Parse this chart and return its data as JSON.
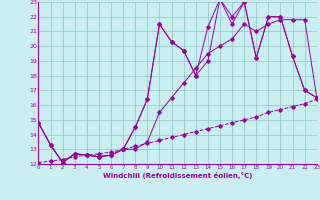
{
  "xlabel": "Windchill (Refroidissement éolien,°C)",
  "bg_color": "#c8eef0",
  "grid_color": "#99cccc",
  "line_color": "#990099",
  "xmin": 0,
  "xmax": 23,
  "ymin": 12,
  "ymax": 23,
  "series": [
    {
      "x": [
        0,
        1,
        2,
        3,
        4,
        5,
        6,
        7,
        8,
        9,
        10,
        11,
        12,
        13,
        14,
        15,
        16,
        17,
        18,
        19,
        20,
        21,
        22,
        23
      ],
      "y": [
        14.8,
        13.3,
        12.1,
        12.7,
        12.6,
        12.5,
        12.6,
        13.0,
        14.5,
        16.4,
        21.5,
        20.3,
        19.7,
        18.0,
        19.0,
        23.2,
        22.0,
        23.0,
        19.2,
        22.0,
        22.0,
        19.3,
        17.0,
        16.5
      ],
      "dashed": false
    },
    {
      "x": [
        0,
        1,
        2,
        3,
        4,
        5,
        6,
        7,
        8,
        9,
        10,
        11,
        12,
        13,
        14,
        15,
        16,
        17,
        18,
        19,
        20,
        21,
        22,
        23
      ],
      "y": [
        14.8,
        13.3,
        12.1,
        12.7,
        12.6,
        12.5,
        12.6,
        13.0,
        14.5,
        16.4,
        21.5,
        20.3,
        19.7,
        18.0,
        21.3,
        23.2,
        21.5,
        23.0,
        19.2,
        22.0,
        22.0,
        19.3,
        17.0,
        16.5
      ],
      "dashed": false
    },
    {
      "x": [
        0,
        1,
        2,
        3,
        4,
        5,
        6,
        7,
        8,
        9,
        10,
        11,
        12,
        13,
        14,
        15,
        16,
        17,
        18,
        19,
        20,
        21,
        22,
        23
      ],
      "y": [
        14.8,
        13.3,
        12.1,
        12.7,
        12.6,
        12.5,
        12.6,
        13.0,
        13.0,
        13.5,
        15.5,
        16.5,
        17.5,
        18.5,
        19.5,
        20.0,
        20.5,
        21.5,
        21.0,
        21.5,
        21.8,
        21.8,
        21.8,
        16.5
      ],
      "dashed": false
    },
    {
      "x": [
        0,
        1,
        2,
        3,
        4,
        5,
        6,
        7,
        8,
        9,
        10,
        11,
        12,
        13,
        14,
        15,
        16,
        17,
        18,
        19,
        20,
        21,
        22,
        23
      ],
      "y": [
        12.1,
        12.2,
        12.3,
        12.5,
        12.6,
        12.7,
        12.8,
        13.0,
        13.2,
        13.4,
        13.6,
        13.8,
        14.0,
        14.2,
        14.4,
        14.6,
        14.8,
        15.0,
        15.2,
        15.5,
        15.7,
        15.9,
        16.1,
        16.4
      ],
      "dashed": true
    }
  ]
}
